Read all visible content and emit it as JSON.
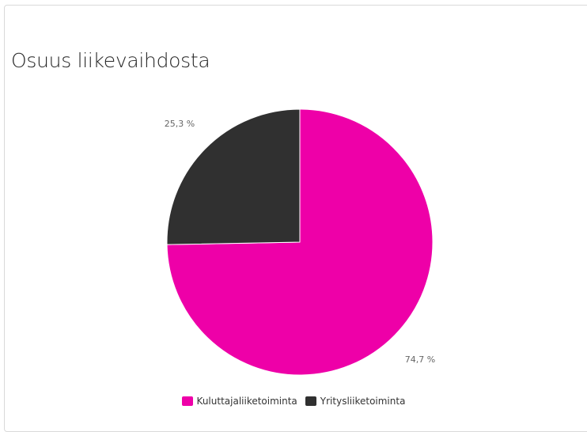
{
  "chart_data": {
    "type": "pie",
    "title": "Osuus liikevaihdosta",
    "slices": [
      {
        "name": "Kuluttajaliiketoiminta",
        "value": 74.7,
        "label": "74,7 %",
        "color": "#ee00a8"
      },
      {
        "name": "Yritysliiketoiminta",
        "value": 25.3,
        "label": "25,3 %",
        "color": "#303030"
      }
    ],
    "legend_position": "bottom-center"
  }
}
